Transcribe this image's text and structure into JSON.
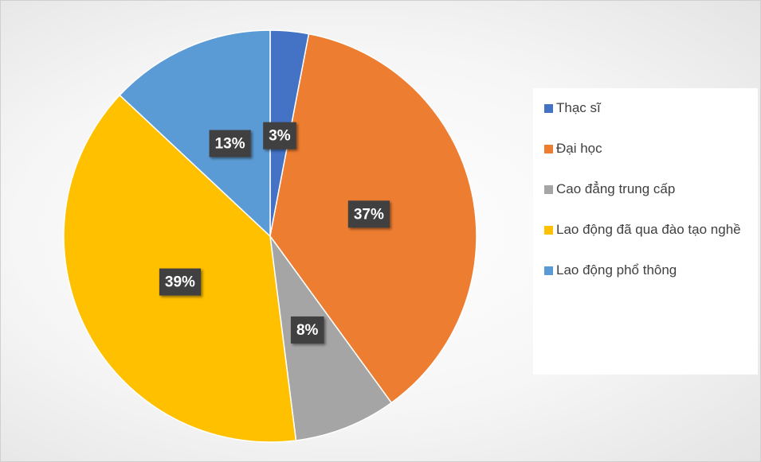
{
  "chart_data": {
    "type": "pie",
    "categories": [
      "Thạc sĩ",
      "Đại học",
      "Cao đẳng trung cấp",
      "Lao động đã qua đào tạo nghề",
      "Lao động phổ thông"
    ],
    "values": [
      3,
      37,
      8,
      39,
      13
    ],
    "value_labels": [
      "3%",
      "37%",
      "8%",
      "39%",
      "13%"
    ],
    "colors": [
      "#4472c4",
      "#ed7d31",
      "#a5a5a5",
      "#ffc000",
      "#5b9bd5"
    ],
    "legend": "right"
  }
}
